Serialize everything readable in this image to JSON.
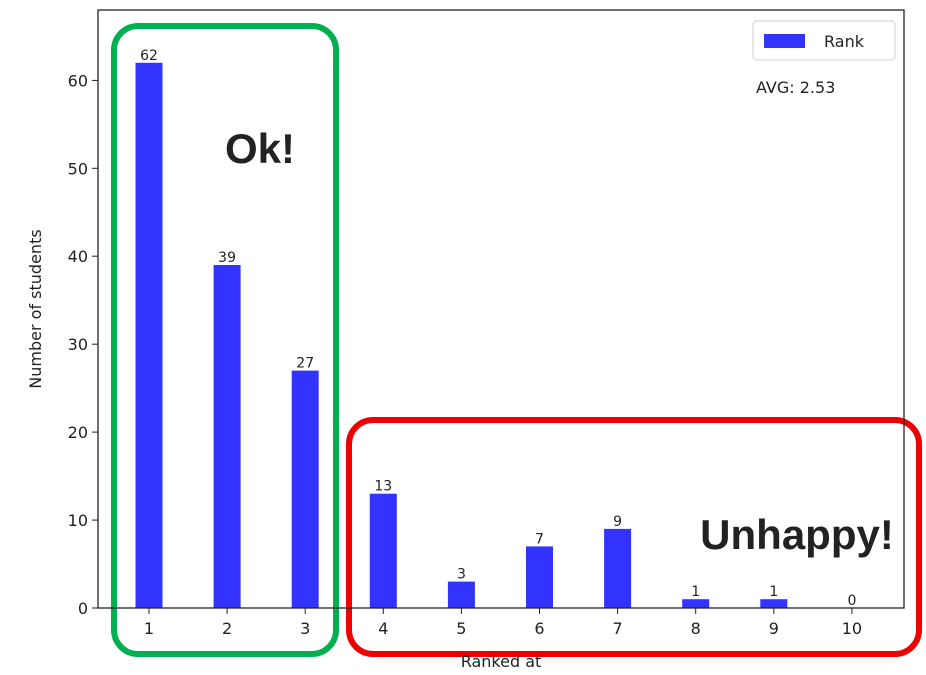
{
  "chart_data": {
    "type": "bar",
    "categories": [
      "1",
      "2",
      "3",
      "4",
      "5",
      "6",
      "7",
      "8",
      "9",
      "10"
    ],
    "series": [
      {
        "name": "Rank",
        "values": [
          62,
          39,
          27,
          13,
          3,
          7,
          9,
          1,
          1,
          0
        ],
        "color": "#3333ff"
      }
    ],
    "value_labels": [
      "62",
      "39",
      "27",
      "13",
      "3",
      "7",
      "9",
      "1",
      "1",
      "0"
    ],
    "xlabel": "Ranked at",
    "ylabel": "Number of students",
    "ylim": [
      0,
      68
    ],
    "yticks": [
      0,
      10,
      20,
      30,
      40,
      50,
      60
    ],
    "ytick_labels": [
      "0",
      "10",
      "20",
      "30",
      "40",
      "50",
      "60"
    ],
    "grid": false,
    "legend": {
      "placement": "top-right",
      "label": "Rank"
    },
    "avg_text": "AVG: 2.53",
    "annotations": [
      {
        "text": "Ok!",
        "color": "#00b050",
        "categories": [
          "1",
          "2",
          "3"
        ]
      },
      {
        "text": "Unhappy!",
        "color": "#ee0000",
        "categories": [
          "4",
          "5",
          "6",
          "7",
          "8",
          "9",
          "10"
        ]
      }
    ]
  }
}
